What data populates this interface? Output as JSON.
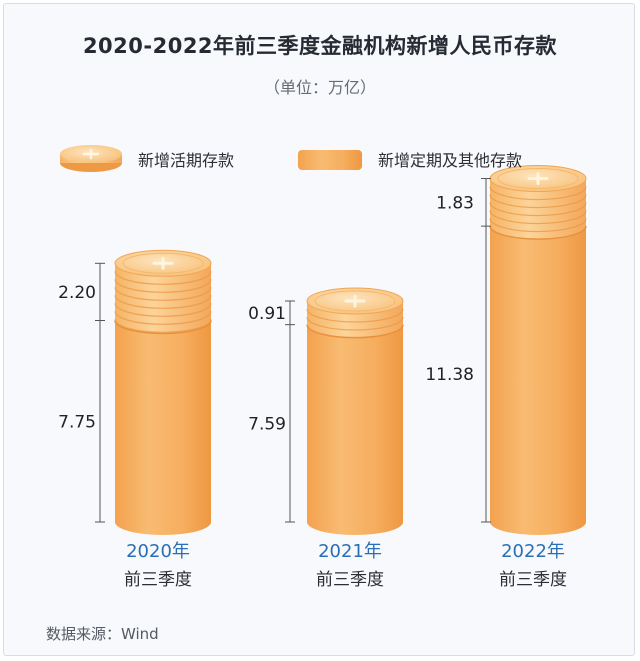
{
  "chart_data": {
    "type": "bar",
    "stacked": true,
    "title": "2020-2022年前三季度金融机构新增人民币存款",
    "subtitle": "（单位：万亿）",
    "source": "数据来源：Wind",
    "categories": [
      {
        "year": "2020年",
        "period": "前三季度"
      },
      {
        "year": "2021年",
        "period": "前三季度"
      },
      {
        "year": "2022年",
        "period": "前三季度"
      }
    ],
    "series": [
      {
        "name": "新增定期及其他存款",
        "values": [
          7.75,
          7.59,
          11.38
        ],
        "color": "#f6ac60"
      },
      {
        "name": "新增活期存款",
        "values": [
          2.2,
          0.91,
          1.83
        ],
        "color": "#fbd08c"
      }
    ],
    "value_labels": {
      "deposit_other": [
        "7.75",
        "7.59",
        "11.38"
      ],
      "deposit_demand": [
        "2.20",
        "0.91",
        "1.83"
      ]
    },
    "legend_placement": "top",
    "ylim": [
      0,
      14
    ],
    "grid": false
  }
}
